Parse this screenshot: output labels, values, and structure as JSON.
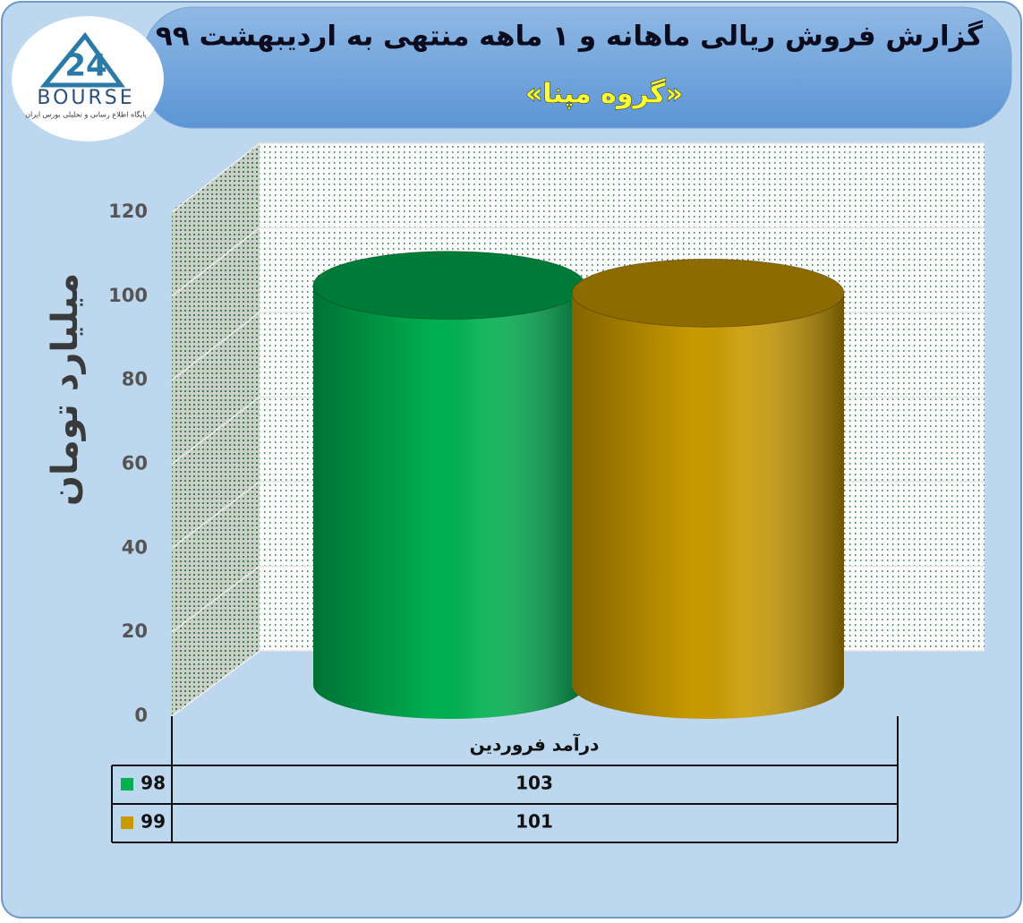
{
  "logo": {
    "number": "24",
    "name": "BOURSE",
    "tagline": "پایگاه اطلاع رسانی و تحلیلی بورس ایران"
  },
  "chart_data": {
    "type": "bar",
    "title": "گزارش فروش ریالی ماهانه و ۱ ماهه منتهی به اردیبهشت ۹۹",
    "subtitle": "«گروه مپنا»",
    "y_label": "میلیارد تومان",
    "categories": [
      "درآمد فروردین"
    ],
    "series": [
      {
        "name": "98",
        "color": "#00b050",
        "values": [
          103
        ]
      },
      {
        "name": "99",
        "color": "#c99a00",
        "values": [
          101
        ]
      }
    ],
    "ylim": [
      0,
      120
    ],
    "yticks": [
      0,
      20,
      40,
      60,
      80,
      100,
      120
    ],
    "grid": true,
    "data_table": true
  }
}
